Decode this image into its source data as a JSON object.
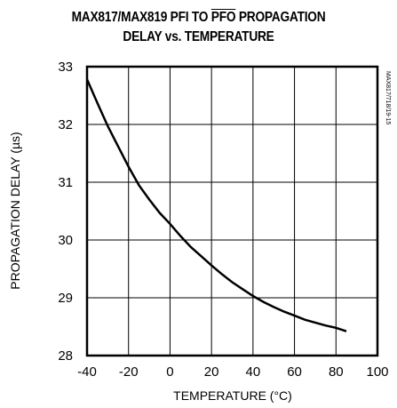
{
  "chart_data": {
    "type": "line",
    "title_line1_a": "MAX817/MAX819 PFI TO ",
    "title_line1_over": "PFO",
    "title_line1_b": " PROPAGATION",
    "title_line2": "DELAY vs. TEMPERATURE",
    "xlabel": "TEMPERATURE (°C)",
    "ylabel": "PROPAGATION DELAY (µs)",
    "side_label": "MAX817/718/19-15",
    "xlim": [
      -40,
      100
    ],
    "ylim": [
      28,
      33
    ],
    "xticks": [
      "-40",
      "-20",
      "0",
      "20",
      "40",
      "60",
      "80",
      "100"
    ],
    "yticks": [
      "28",
      "29",
      "30",
      "31",
      "32",
      "33"
    ],
    "grid": true,
    "series": [
      {
        "x": [
          -40,
          -35,
          -30,
          -25,
          -20,
          -15,
          -10,
          -5,
          0,
          5,
          10,
          15,
          20,
          25,
          30,
          35,
          40,
          45,
          50,
          55,
          60,
          65,
          70,
          75,
          80,
          85
        ],
        "y": [
          32.78,
          32.37,
          31.97,
          31.62,
          31.27,
          30.95,
          30.7,
          30.47,
          30.28,
          30.07,
          29.88,
          29.72,
          29.56,
          29.41,
          29.27,
          29.15,
          29.03,
          28.93,
          28.84,
          28.76,
          28.69,
          28.62,
          28.57,
          28.52,
          28.48,
          28.42
        ]
      }
    ],
    "line_color": "#000000"
  }
}
